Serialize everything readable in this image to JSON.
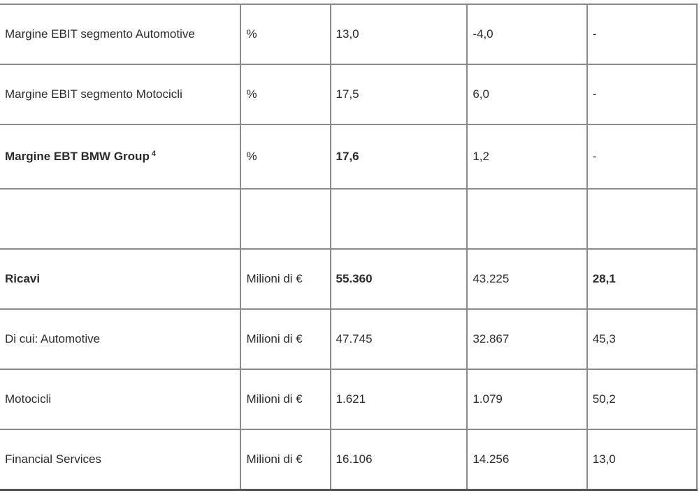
{
  "table": {
    "rows": [
      {
        "cells": [
          "Margine EBIT segmento Automotive",
          "%",
          "13,0",
          "-4,0",
          "-"
        ],
        "bold": []
      },
      {
        "cells": [
          "Margine EBIT segmento Motocicli",
          "%",
          "17,5",
          "6,0",
          "-"
        ],
        "bold": []
      },
      {
        "cells": [
          "Margine EBT BMW Group",
          "%",
          "17,6",
          "1,2",
          "-"
        ],
        "footnote": "4",
        "bold": [
          0,
          2
        ]
      },
      {
        "cells": [
          "",
          "",
          "",
          "",
          ""
        ],
        "bold": []
      },
      {
        "cells": [
          "Ricavi",
          "Milioni di €",
          "55.360",
          "43.225",
          "28,1"
        ],
        "bold": [
          0,
          2,
          4
        ]
      },
      {
        "cells": [
          "Di cui: Automotive",
          "Milioni di €",
          "47.745",
          "32.867",
          "45,3"
        ],
        "bold": []
      },
      {
        "cells": [
          "Motocicli",
          "Milioni di €",
          "1.621",
          "1.079",
          "50,2"
        ],
        "bold": []
      },
      {
        "cells": [
          "Financial Services",
          "Milioni di €",
          "16.106",
          "14.256",
          "13,0"
        ],
        "bold": []
      }
    ]
  }
}
